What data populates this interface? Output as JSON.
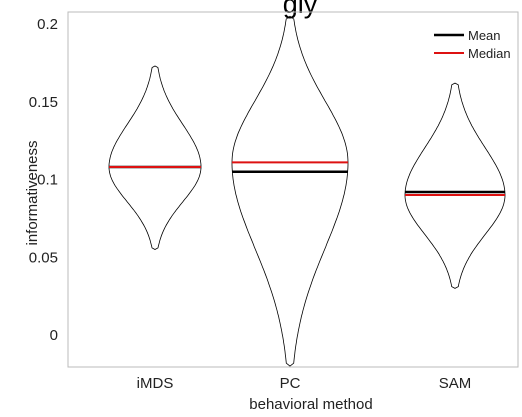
{
  "chart_data": {
    "type": "violin",
    "title": "gly",
    "xlabel": "behavioral method",
    "ylabel": "informativeness",
    "ylim": [
      -0.02,
      0.205
    ],
    "yticks": [
      "0",
      "0.05",
      "0.1",
      "0.15",
      "0.2"
    ],
    "ytick_values": [
      0,
      0.05,
      0.1,
      0.15,
      0.2
    ],
    "grid": false,
    "legend_position": "top-right",
    "legend": [
      {
        "label": "Mean",
        "color": "#000000"
      },
      {
        "label": "Median",
        "color": "#dd1111"
      }
    ],
    "categories": [
      "iMDS",
      "PC",
      "SAM"
    ],
    "violins": [
      {
        "category": "iMDS",
        "min": 0.055,
        "max": 0.173,
        "mean": 0.108,
        "median": 0.108
      },
      {
        "category": "PC",
        "min": -0.02,
        "max": 0.205,
        "mean": 0.105,
        "median": 0.111
      },
      {
        "category": "SAM",
        "min": 0.03,
        "max": 0.162,
        "mean": 0.092,
        "median": 0.09
      }
    ]
  }
}
